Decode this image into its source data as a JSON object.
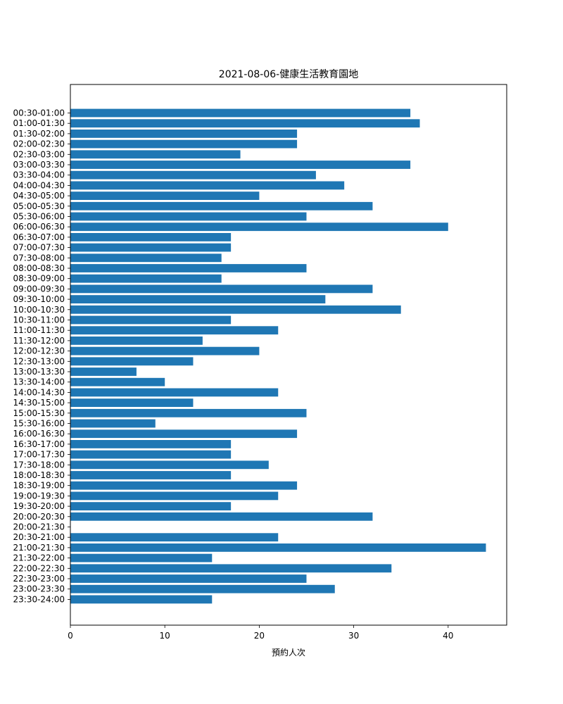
{
  "chart_data": {
    "type": "bar",
    "orientation": "horizontal",
    "title": "2021-08-06-健康生活教育園地",
    "xlabel": "預約人次",
    "ylabel": "",
    "xlim": [
      0,
      46.2
    ],
    "xticks": [
      0,
      10,
      20,
      30,
      40
    ],
    "grid": false,
    "legend": "none",
    "bar_color": "#1f77b4",
    "categories": [
      "00:30-01:00",
      "01:00-01:30",
      "01:30-02:00",
      "02:00-02:30",
      "02:30-03:00",
      "03:00-03:30",
      "03:30-04:00",
      "04:00-04:30",
      "04:30-05:00",
      "05:00-05:30",
      "05:30-06:00",
      "06:00-06:30",
      "06:30-07:00",
      "07:00-07:30",
      "07:30-08:00",
      "08:00-08:30",
      "08:30-09:00",
      "09:00-09:30",
      "09:30-10:00",
      "10:00-10:30",
      "10:30-11:00",
      "11:00-11:30",
      "11:30-12:00",
      "12:00-12:30",
      "12:30-13:00",
      "13:00-13:30",
      "13:30-14:00",
      "14:00-14:30",
      "14:30-15:00",
      "15:00-15:30",
      "15:30-16:00",
      "16:00-16:30",
      "16:30-17:00",
      "17:00-17:30",
      "17:30-18:00",
      "18:00-18:30",
      "18:30-19:00",
      "19:00-19:30",
      "19:30-20:00",
      "20:00-20:30",
      "20:00-21:30",
      "20:30-21:00",
      "21:00-21:30",
      "21:30-22:00",
      "22:00-22:30",
      "22:30-23:00",
      "23:00-23:30",
      "23:30-24:00"
    ],
    "values": [
      36,
      37,
      24,
      24,
      18,
      36,
      26,
      29,
      20,
      32,
      25,
      40,
      17,
      17,
      16,
      25,
      16,
      32,
      27,
      35,
      17,
      22,
      14,
      20,
      13,
      7,
      10,
      22,
      13,
      25,
      9,
      24,
      17,
      17,
      21,
      17,
      24,
      22,
      17,
      32,
      0,
      22,
      44,
      15,
      34,
      25,
      28,
      15
    ]
  }
}
